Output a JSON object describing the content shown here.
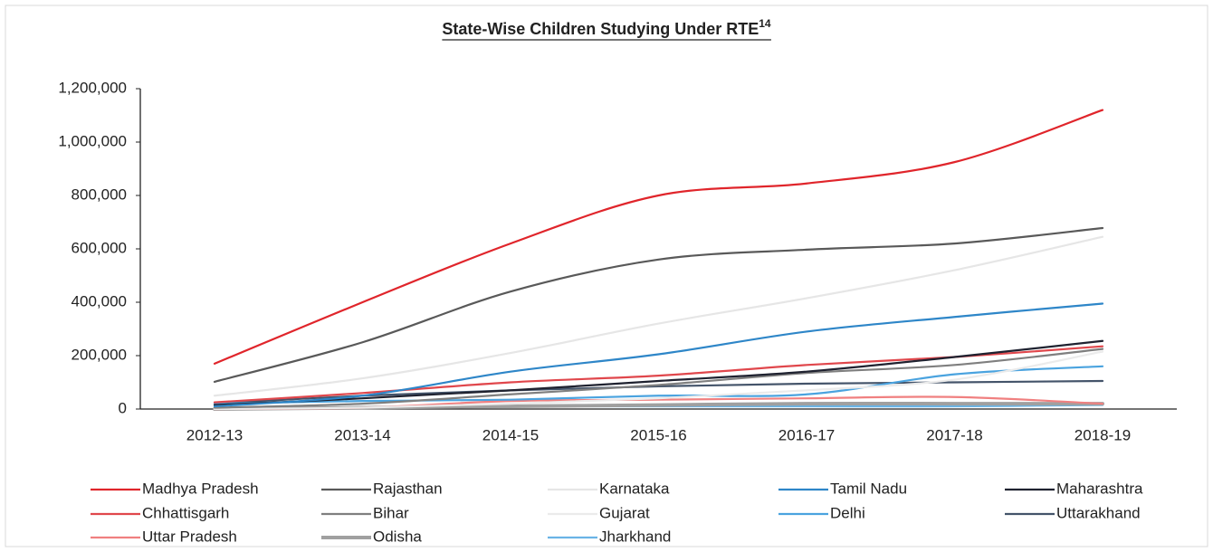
{
  "chart_data": {
    "type": "line",
    "title": "State-Wise Children Studying Under RTE",
    "title_note": "14",
    "categories": [
      "2012-13",
      "2013-14",
      "2014-15",
      "2015-16",
      "2016-17",
      "2017-18",
      "2018-19"
    ],
    "ylim": [
      0,
      1200000
    ],
    "yticks": [
      0,
      {
        "value": 200000,
        "label": "200,000"
      },
      {
        "value": 400000,
        "label": "400,000"
      },
      {
        "value": 600000,
        "label": "600,000"
      },
      {
        "value": 800000,
        "label": "800,000"
      },
      {
        "value": 1000000,
        "label": "1,000,000"
      },
      {
        "value": 1200000,
        "label": "1,200,000"
      }
    ],
    "grid": false,
    "legend": "bottom",
    "series": [
      {
        "name": "Madhya Pradesh",
        "color": "#e0252b",
        "values": [
          170000,
          400000,
          620000,
          800000,
          845000,
          925000,
          1120000
        ]
      },
      {
        "name": "Rajasthan",
        "color": "#595959",
        "values": [
          102000,
          250000,
          440000,
          560000,
          597000,
          620000,
          678000
        ]
      },
      {
        "name": "Karnataka",
        "color": "#e6e6e6",
        "values": [
          50000,
          115000,
          210000,
          320000,
          415000,
          520000,
          645000
        ]
      },
      {
        "name": "Tamil Nadu",
        "color": "#2e86c8",
        "values": [
          10000,
          50000,
          140000,
          205000,
          290000,
          345000,
          395000
        ]
      },
      {
        "name": "Maharashtra",
        "color": "#1f2230",
        "values": [
          15000,
          40000,
          70000,
          105000,
          140000,
          195000,
          255000
        ]
      },
      {
        "name": "Chhattisgarh",
        "color": "#e0474c",
        "values": [
          25000,
          60000,
          100000,
          125000,
          165000,
          195000,
          235000
        ]
      },
      {
        "name": "Bihar",
        "color": "#7f7f7f",
        "values": [
          5000,
          20000,
          55000,
          90000,
          135000,
          165000,
          225000
        ]
      },
      {
        "name": "Gujarat",
        "color": "#ebebeb",
        "values": [
          0,
          5000,
          20000,
          40000,
          70000,
          110000,
          215000
        ]
      },
      {
        "name": "Delhi",
        "color": "#4aa3df",
        "values": [
          20000,
          30000,
          35000,
          50000,
          55000,
          130000,
          160000
        ]
      },
      {
        "name": "Uttarakhand",
        "color": "#44546a",
        "values": [
          20000,
          50000,
          70000,
          85000,
          95000,
          100000,
          105000
        ]
      },
      {
        "name": "Uttar Pradesh",
        "color": "#f08080",
        "values": [
          0,
          5000,
          30000,
          35000,
          40000,
          45000,
          20000
        ]
      },
      {
        "name": "Odisha",
        "color": "#a0a0a0",
        "values": [
          0,
          5000,
          10000,
          15000,
          20000,
          20000,
          20000
        ],
        "width": 4
      },
      {
        "name": "Jharkhand",
        "color": "#6ab4e6",
        "values": [
          0,
          5000,
          10000,
          10000,
          10000,
          10000,
          15000
        ]
      }
    ]
  }
}
